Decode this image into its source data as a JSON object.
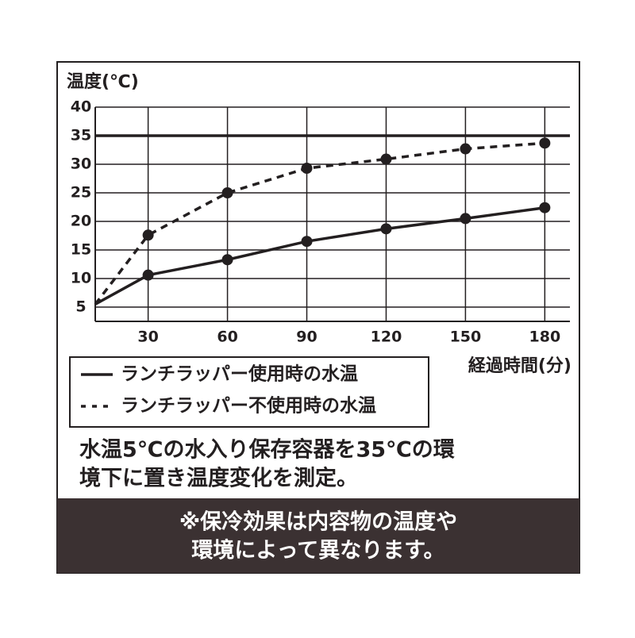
{
  "chart_data": {
    "type": "line",
    "ylabel": "温度(℃)",
    "xlabel": "経過時間(分)",
    "x": [
      10,
      30,
      60,
      90,
      120,
      150,
      180
    ],
    "series": [
      {
        "name": "ランチラッパー使用時の水温",
        "color": "#231f20",
        "dashed": false,
        "values": [
          5.5,
          10.6,
          13.3,
          16.5,
          18.7,
          20.5,
          22.4
        ]
      },
      {
        "name": "ランチラッパー不使用時の水温",
        "color": "#231f20",
        "dashed": true,
        "values": [
          5.5,
          17.6,
          25,
          29.3,
          30.9,
          32.7,
          33.7
        ]
      }
    ],
    "xlim": [
      10,
      189.5
    ],
    "ylim": [
      2.5,
      40
    ],
    "xticks": [
      30,
      60,
      90,
      120,
      150,
      180
    ],
    "yticks": [
      5,
      10,
      15,
      20,
      25,
      30,
      35,
      40
    ],
    "highlight_line": 35,
    "grid": true
  },
  "note": [
    "水温5℃の水入り保存容器を35℃の環",
    "境下に置き温度変化を測定。"
  ],
  "footer": [
    "※保冷効果は内容物の温度や",
    "環境によって異なります。"
  ]
}
